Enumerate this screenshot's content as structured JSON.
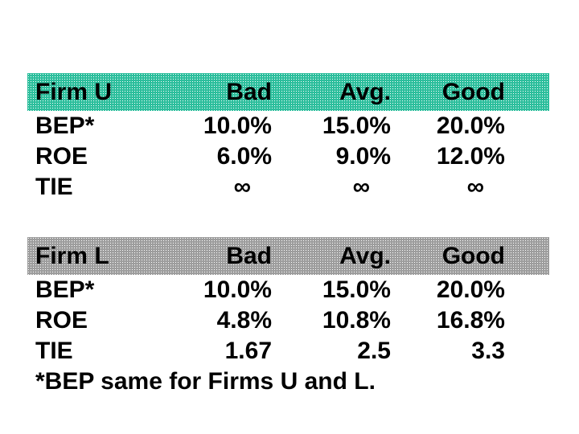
{
  "slide": {
    "background_color": "#ffffff",
    "text_color": "#000000"
  },
  "firm_u_table": {
    "title": "Firm U",
    "header_color": "#2cbe9c",
    "columns": [
      "Bad",
      "Avg.",
      "Good"
    ],
    "rows": [
      {
        "label": "BEP*",
        "values": [
          "10.0%",
          "15.0%",
          "20.0%"
        ]
      },
      {
        "label": "ROE",
        "values": [
          "6.0%",
          "9.0%",
          "12.0%"
        ]
      },
      {
        "label": "TIE",
        "values": [
          "∞",
          "∞",
          "∞"
        ]
      }
    ]
  },
  "firm_l_table": {
    "title": "Firm L",
    "header_color": "#9d9d9d",
    "columns": [
      "Bad",
      "Avg.",
      "Good"
    ],
    "rows": [
      {
        "label": "BEP*",
        "values": [
          "10.0%",
          "15.0%",
          "20.0%"
        ]
      },
      {
        "label": "ROE",
        "values": [
          "4.8%",
          "10.8%",
          "16.8%"
        ]
      },
      {
        "label": "TIE",
        "values": [
          "1.67",
          "2.5",
          "3.3"
        ]
      }
    ],
    "footnote": "*BEP same for Firms U and L."
  }
}
